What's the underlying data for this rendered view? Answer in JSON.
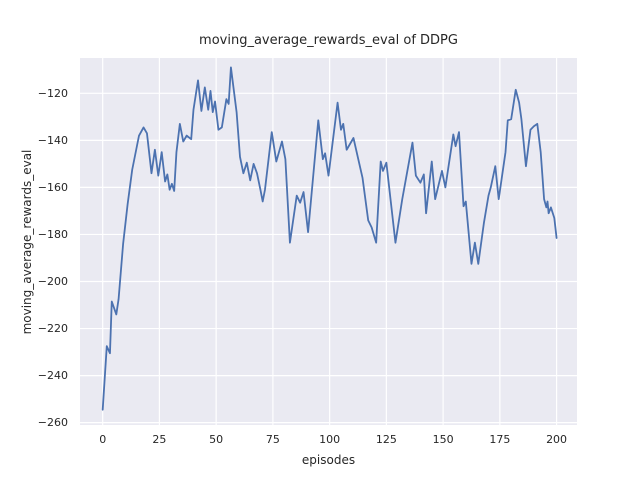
{
  "chart_data": {
    "type": "line",
    "title": "moving_average_rewards_eval of DDPG",
    "xlabel": "episodes",
    "ylabel": "moving_average_rewards_eval",
    "xlim": [
      -10,
      209
    ],
    "ylim": [
      -261,
      -105
    ],
    "grid": true,
    "legend_position": "none",
    "colors": {
      "line": "#4c72b0",
      "plot_background": "#eaeaf2",
      "grid": "#ffffff",
      "text": "#262626",
      "figure_background": "#ffffff"
    },
    "x_ticks": [
      {
        "v": 0,
        "label": "0"
      },
      {
        "v": 25,
        "label": "25"
      },
      {
        "v": 50,
        "label": "50"
      },
      {
        "v": 75,
        "label": "75"
      },
      {
        "v": 100,
        "label": "100"
      },
      {
        "v": 125,
        "label": "125"
      },
      {
        "v": 150,
        "label": "150"
      },
      {
        "v": 175,
        "label": "175"
      },
      {
        "v": 200,
        "label": "200"
      }
    ],
    "y_ticks": [
      {
        "v": -260,
        "label": "−260"
      },
      {
        "v": -240,
        "label": "−240"
      },
      {
        "v": -220,
        "label": "−220"
      },
      {
        "v": -200,
        "label": "−200"
      },
      {
        "v": -180,
        "label": "−180"
      },
      {
        "v": -160,
        "label": "−160"
      },
      {
        "v": -140,
        "label": "−140"
      },
      {
        "v": -120,
        "label": "−120"
      }
    ],
    "series": [
      {
        "name": "moving_average_rewards_eval",
        "points": [
          [
            0,
            -254.5
          ],
          [
            1.8,
            -227.5
          ],
          [
            3.2,
            -230.5
          ],
          [
            4,
            -208.5
          ],
          [
            6,
            -214
          ],
          [
            7,
            -207.5
          ],
          [
            9,
            -184
          ],
          [
            11,
            -167
          ],
          [
            13,
            -152.5
          ],
          [
            16,
            -138
          ],
          [
            18,
            -134.5
          ],
          [
            19.5,
            -137
          ],
          [
            21.5,
            -154
          ],
          [
            23,
            -144
          ],
          [
            24.5,
            -155
          ],
          [
            26,
            -145
          ],
          [
            27.5,
            -157.5
          ],
          [
            28.5,
            -154.5
          ],
          [
            29.5,
            -161
          ],
          [
            30.5,
            -158.5
          ],
          [
            31.5,
            -161.5
          ],
          [
            32.5,
            -145
          ],
          [
            34,
            -133
          ],
          [
            35.5,
            -140.5
          ],
          [
            37,
            -138
          ],
          [
            39,
            -139.5
          ],
          [
            40,
            -127
          ],
          [
            42,
            -114.5
          ],
          [
            43.5,
            -127.5
          ],
          [
            45,
            -117.5
          ],
          [
            46.5,
            -127
          ],
          [
            47.5,
            -119
          ],
          [
            48.5,
            -128
          ],
          [
            49.5,
            -123.5
          ],
          [
            51,
            -135.5
          ],
          [
            52.5,
            -134.5
          ],
          [
            54.5,
            -122.5
          ],
          [
            55.5,
            -124.5
          ],
          [
            56.5,
            -109
          ],
          [
            59,
            -128
          ],
          [
            60.5,
            -147
          ],
          [
            62,
            -154
          ],
          [
            63.5,
            -149.5
          ],
          [
            65,
            -157
          ],
          [
            66.5,
            -150
          ],
          [
            68,
            -154
          ],
          [
            69.5,
            -161
          ],
          [
            70.5,
            -166
          ],
          [
            71.5,
            -161
          ],
          [
            74.5,
            -136.5
          ],
          [
            76.5,
            -149
          ],
          [
            79,
            -140.5
          ],
          [
            80.5,
            -148
          ],
          [
            82.5,
            -183.5
          ],
          [
            85.5,
            -163.5
          ],
          [
            87,
            -166.5
          ],
          [
            88.5,
            -162
          ],
          [
            90.5,
            -179
          ],
          [
            95,
            -131.5
          ],
          [
            97,
            -148
          ],
          [
            98,
            -145.5
          ],
          [
            99.5,
            -155
          ],
          [
            103.5,
            -124
          ],
          [
            105,
            -135.5
          ],
          [
            106,
            -133
          ],
          [
            107.5,
            -144
          ],
          [
            110.5,
            -139
          ],
          [
            114.5,
            -156
          ],
          [
            117,
            -174
          ],
          [
            118.5,
            -177
          ],
          [
            120.5,
            -183.5
          ],
          [
            122.5,
            -149
          ],
          [
            123.5,
            -153
          ],
          [
            125,
            -149.5
          ],
          [
            129,
            -183.5
          ],
          [
            132,
            -165
          ],
          [
            136.5,
            -141
          ],
          [
            138,
            -155
          ],
          [
            140,
            -158
          ],
          [
            141.5,
            -154.5
          ],
          [
            142.5,
            -171
          ],
          [
            145,
            -149
          ],
          [
            146.5,
            -165
          ],
          [
            149.5,
            -153
          ],
          [
            151,
            -160
          ],
          [
            154.5,
            -137.5
          ],
          [
            155.5,
            -142.5
          ],
          [
            157,
            -136.5
          ],
          [
            159,
            -168
          ],
          [
            160,
            -166
          ],
          [
            162.5,
            -192.5
          ],
          [
            164,
            -183.5
          ],
          [
            165.5,
            -192.5
          ],
          [
            168,
            -175
          ],
          [
            170,
            -163.5
          ],
          [
            171,
            -160
          ],
          [
            173,
            -151
          ],
          [
            174.5,
            -165
          ],
          [
            177.5,
            -145
          ],
          [
            178.5,
            -131.5
          ],
          [
            180,
            -131
          ],
          [
            182,
            -118.5
          ],
          [
            183.5,
            -124
          ],
          [
            184.5,
            -131
          ],
          [
            186.5,
            -151
          ],
          [
            188.5,
            -135.5
          ],
          [
            190,
            -134
          ],
          [
            191.5,
            -133
          ],
          [
            193,
            -145
          ],
          [
            194.5,
            -165
          ],
          [
            195.5,
            -168.5
          ],
          [
            196,
            -166
          ],
          [
            196.5,
            -171
          ],
          [
            197.5,
            -168.5
          ],
          [
            199,
            -173
          ],
          [
            200,
            -181.5
          ]
        ]
      }
    ]
  }
}
